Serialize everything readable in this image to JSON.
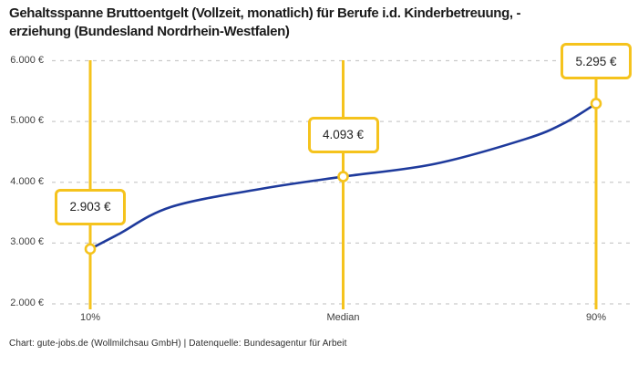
{
  "title": "Gehaltsspanne Bruttoentgelt (Vollzeit, monatlich) für Berufe i.d. Kinderbetreuung, -erziehung (Bundesland Nordrhein-Westfalen)",
  "title_lines": [
    "Gehaltsspanne Bruttoentgelt (Vollzeit, monatlich) für Berufe i.d. Kinderbetreuung, -",
    "erziehung (Bundesland Nordrhein-Westfalen)"
  ],
  "footer": "Chart: gute-jobs.de (Wollmilchsau GmbH) | Datenquelle: Bundesagentur für Arbeit",
  "chart_data": {
    "type": "line",
    "title": "Gehaltsspanne Bruttoentgelt (Vollzeit, monatlich) für Berufe i.d. Kinderbetreuung, -erziehung (Bundesland Nordrhein-Westfalen)",
    "categories": [
      "10%",
      "Median",
      "90%"
    ],
    "values": [
      2903,
      4093,
      5295
    ],
    "point_labels": [
      "2.903 €",
      "4.093 €",
      "5.295 €"
    ],
    "ylim": [
      2000,
      6000
    ],
    "y_tick_step": 1000,
    "y_tick_labels": [
      "2.000 €",
      "3.000 €",
      "4.000 €",
      "5.000 €",
      "6.000 €"
    ],
    "grid": "horizontal-dashed",
    "legend": "none",
    "curve_shape_estimate": [
      {
        "x_fraction": 0.0,
        "value": 2903
      },
      {
        "x_fraction": 0.056,
        "value": 3146
      },
      {
        "x_fraction": 0.16,
        "value": 3595
      },
      {
        "x_fraction": 0.34,
        "value": 3895
      },
      {
        "x_fraction": 0.5,
        "value": 4093
      },
      {
        "x_fraction": 0.68,
        "value": 4300
      },
      {
        "x_fraction": 0.86,
        "value": 4710
      },
      {
        "x_fraction": 0.937,
        "value": 4973
      },
      {
        "x_fraction": 1.0,
        "value": 5295
      }
    ],
    "colors": {
      "line": "#1E3A9C",
      "accent_yellow": "#F5C31D",
      "gridline": "#CBCBCB",
      "tick_text": "#3D3D3D",
      "title_text": "#1B1B1B"
    }
  }
}
